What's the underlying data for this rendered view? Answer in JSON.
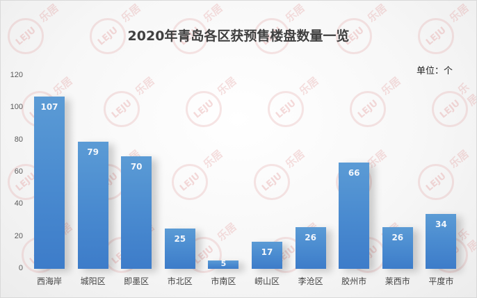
{
  "chart_data": {
    "type": "bar",
    "title": "2020年青岛各区获预售楼盘数量一览",
    "unit_label": "单位：个",
    "xlabel": "",
    "ylabel": "",
    "ylim": [
      0,
      120
    ],
    "yticks": [
      0,
      20,
      40,
      60,
      80,
      100,
      120
    ],
    "grid": false,
    "legend": null,
    "data_labels": true,
    "bar_color": "#4a8bd0",
    "categories": [
      "西海岸",
      "城阳区",
      "即墨区",
      "市北区",
      "市南区",
      "崂山区",
      "李沧区",
      "胶州市",
      "莱西市",
      "平度市"
    ],
    "values": [
      107,
      79,
      70,
      25,
      5,
      17,
      26,
      66,
      26,
      34
    ]
  },
  "watermark": {
    "logo_text": "LEJU",
    "brand_text": "乐居"
  }
}
